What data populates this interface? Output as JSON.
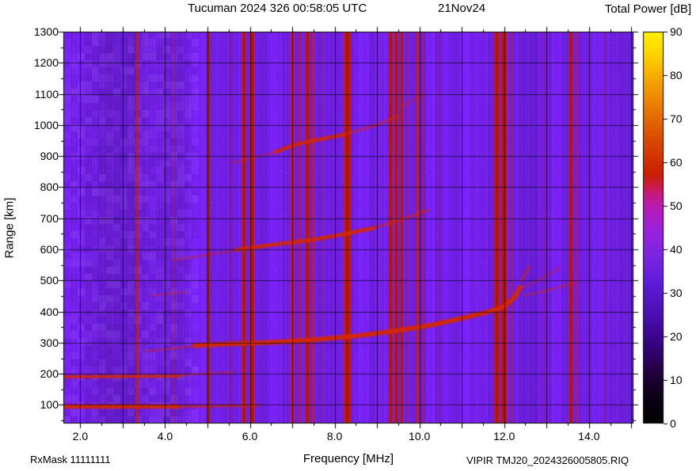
{
  "header": {
    "title": "Tucuman 2024 326 00:58:05 UTC",
    "date": "21Nov24"
  },
  "footer": {
    "rxmask": "RxMask 11111111",
    "file": "VIPIR TMJ20_2024326005805.RIQ"
  },
  "chart_data": {
    "type": "heatmap",
    "title": "Tucuman 2024 326 00:58:05 UTC 21Nov24",
    "xlabel": "Frequency [MHz]",
    "ylabel": "Range [km]",
    "xlim": [
      1.6,
      15.05
    ],
    "ylim": [
      40,
      1300
    ],
    "grid": true,
    "xticks": {
      "values": [
        2,
        4,
        6,
        8,
        10,
        12,
        14
      ],
      "labels": [
        "2.0",
        "4.0",
        "6.0",
        "8.0",
        "10.0",
        "12.0",
        "14.0"
      ]
    },
    "yticks": {
      "values": [
        100,
        200,
        300,
        400,
        500,
        600,
        700,
        800,
        900,
        1000,
        1100,
        1200,
        1300
      ],
      "labels": [
        "100",
        "200",
        "300",
        "400",
        "500",
        "600",
        "700",
        "800",
        "900",
        "1000",
        "1100",
        "1200",
        "1300"
      ]
    },
    "x_minor_step": 0.5,
    "y_minor_step": 50,
    "colorbar": {
      "title": "Total Power [dB]",
      "min": 0,
      "max": 90,
      "ticks": [
        0,
        10,
        20,
        30,
        40,
        50,
        60,
        70,
        80,
        90
      ],
      "stops": [
        {
          "pos": 0.0,
          "color": "#000000"
        },
        {
          "pos": 0.06,
          "color": "#0a0012"
        },
        {
          "pos": 0.13,
          "color": "#22003e"
        },
        {
          "pos": 0.2,
          "color": "#37027f"
        },
        {
          "pos": 0.28,
          "color": "#4a10b4"
        },
        {
          "pos": 0.36,
          "color": "#5f1cd8"
        },
        {
          "pos": 0.43,
          "color": "#7c26e2"
        },
        {
          "pos": 0.49,
          "color": "#9822dd"
        },
        {
          "pos": 0.54,
          "color": "#b31cc0"
        },
        {
          "pos": 0.58,
          "color": "#c41a8a"
        },
        {
          "pos": 0.61,
          "color": "#cb1c3a"
        },
        {
          "pos": 0.64,
          "color": "#cc2000"
        },
        {
          "pos": 0.72,
          "color": "#d94800"
        },
        {
          "pos": 0.8,
          "color": "#e87600"
        },
        {
          "pos": 0.88,
          "color": "#f5a800"
        },
        {
          "pos": 0.94,
          "color": "#fdd200"
        },
        {
          "pos": 1.0,
          "color": "#fff200"
        }
      ]
    },
    "colors": {
      "base": "#7020e2",
      "stripe": "#cc2000",
      "stripe_core": "#8c1000",
      "trace": "#d42800",
      "grid": "rgba(0,0,0,0.6)"
    },
    "rfi_stripes": [
      {
        "f": 3.35,
        "w": 0.05,
        "a": 0.8
      },
      {
        "f": 4.22,
        "w": 0.04,
        "a": 0.3
      },
      {
        "f": 5.03,
        "w": 0.06,
        "a": 0.9
      },
      {
        "f": 5.55,
        "w": 0.03,
        "a": 0.35
      },
      {
        "f": 5.86,
        "w": 0.09,
        "a": 0.95
      },
      {
        "f": 6.05,
        "w": 0.11,
        "a": 0.95
      },
      {
        "f": 7.0,
        "w": 0.07,
        "a": 0.85
      },
      {
        "f": 7.17,
        "w": 0.05,
        "a": 0.7
      },
      {
        "f": 7.36,
        "w": 0.09,
        "a": 0.95
      },
      {
        "f": 7.5,
        "w": 0.05,
        "a": 0.8
      },
      {
        "f": 7.72,
        "w": 0.03,
        "a": 0.45
      },
      {
        "f": 8.3,
        "w": 0.16,
        "a": 0.95
      },
      {
        "f": 9.32,
        "w": 0.08,
        "a": 0.95
      },
      {
        "f": 9.45,
        "w": 0.08,
        "a": 0.95
      },
      {
        "f": 9.58,
        "w": 0.07,
        "a": 0.9
      },
      {
        "f": 9.72,
        "w": 0.04,
        "a": 0.5
      },
      {
        "f": 9.95,
        "w": 0.06,
        "a": 0.85
      },
      {
        "f": 10.08,
        "w": 0.04,
        "a": 0.6
      },
      {
        "f": 10.45,
        "w": 0.03,
        "a": 0.3
      },
      {
        "f": 11.83,
        "w": 0.12,
        "a": 0.95
      },
      {
        "f": 12.0,
        "w": 0.14,
        "a": 0.95
      },
      {
        "f": 12.17,
        "w": 0.04,
        "a": 0.5
      },
      {
        "f": 12.95,
        "w": 0.03,
        "a": 0.35
      },
      {
        "f": 13.58,
        "w": 0.09,
        "a": 0.9
      },
      {
        "f": 13.72,
        "w": 0.05,
        "a": 0.55
      },
      {
        "f": 14.38,
        "w": 0.03,
        "a": 0.3
      }
    ],
    "shade_bands": [
      {
        "f1": 1.6,
        "f2": 2.1,
        "k": 1.06
      },
      {
        "f1": 2.4,
        "f2": 3.35,
        "k": 0.93
      },
      {
        "f1": 4.55,
        "f2": 4.95,
        "k": 1.1
      },
      {
        "f1": 6.45,
        "f2": 6.75,
        "k": 1.1
      },
      {
        "f1": 8.55,
        "f2": 8.8,
        "k": 1.08
      },
      {
        "f1": 9.0,
        "f2": 9.25,
        "k": 1.05
      },
      {
        "f1": 10.15,
        "f2": 10.35,
        "k": 1.12
      },
      {
        "f1": 10.55,
        "f2": 10.75,
        "k": 1.06
      },
      {
        "f1": 10.95,
        "f2": 11.2,
        "k": 1.1
      },
      {
        "f1": 11.3,
        "f2": 11.6,
        "k": 1.05
      },
      {
        "f1": 12.35,
        "f2": 12.8,
        "k": 0.95
      },
      {
        "f1": 13.1,
        "f2": 13.35,
        "k": 1.08
      },
      {
        "f1": 14.05,
        "f2": 14.3,
        "k": 1.06
      },
      {
        "f1": 14.55,
        "f2": 15.05,
        "k": 0.96
      }
    ],
    "traces": [
      {
        "name": "E-layer first hop",
        "w": 4,
        "a": 0.95,
        "points": [
          [
            1.62,
            95
          ],
          [
            4.3,
            95
          ]
        ]
      },
      {
        "name": "E-layer first hop fade",
        "w": 3,
        "a": 0.5,
        "points": [
          [
            4.3,
            95
          ],
          [
            6.2,
            98
          ]
        ]
      },
      {
        "name": "E-layer second hop",
        "w": 3,
        "a": 0.8,
        "points": [
          [
            1.62,
            190
          ],
          [
            4.35,
            193
          ]
        ]
      },
      {
        "name": "E-layer second hop fade",
        "w": 2,
        "a": 0.35,
        "points": [
          [
            4.35,
            195
          ],
          [
            5.6,
            205
          ]
        ]
      },
      {
        "name": "F-layer lead-in",
        "w": 2,
        "a": 0.35,
        "points": [
          [
            3.55,
            272
          ],
          [
            4.7,
            289
          ]
        ]
      },
      {
        "name": "F-layer first hop",
        "w": 5,
        "a": 0.92,
        "points": [
          [
            4.7,
            291
          ],
          [
            5.5,
            296
          ],
          [
            6.5,
            301
          ],
          [
            7.5,
            309
          ],
          [
            8.5,
            321
          ],
          [
            9.5,
            339
          ],
          [
            10.3,
            357
          ],
          [
            11.0,
            378
          ],
          [
            11.6,
            398
          ],
          [
            12.0,
            416
          ],
          [
            12.25,
            446
          ],
          [
            12.38,
            478
          ]
        ]
      },
      {
        "name": "F-layer cusp tail",
        "w": 3,
        "a": 0.4,
        "points": [
          [
            12.42,
            500
          ],
          [
            12.6,
            545
          ]
        ]
      },
      {
        "name": "F-layer second hop lead",
        "w": 2,
        "a": 0.3,
        "points": [
          [
            4.2,
            565
          ],
          [
            5.7,
            597
          ]
        ]
      },
      {
        "name": "F-layer second hop",
        "w": 4,
        "a": 0.85,
        "points": [
          [
            5.7,
            599
          ],
          [
            6.5,
            614
          ],
          [
            7.5,
            631
          ],
          [
            8.3,
            651
          ],
          [
            8.9,
            668
          ]
        ]
      },
      {
        "name": "F-layer second hop fade",
        "w": 3,
        "a": 0.4,
        "points": [
          [
            8.9,
            668
          ],
          [
            9.7,
            701
          ],
          [
            10.2,
            726
          ]
        ]
      },
      {
        "name": "F-layer third hop lead",
        "w": 2,
        "a": 0.3,
        "points": [
          [
            5.6,
            878
          ],
          [
            6.6,
            912
          ]
        ]
      },
      {
        "name": "F-layer third hop",
        "w": 4,
        "a": 0.8,
        "points": [
          [
            6.6,
            913
          ],
          [
            7.1,
            938
          ],
          [
            7.7,
            955
          ],
          [
            8.2,
            968
          ]
        ]
      },
      {
        "name": "F-layer third hop fade",
        "w": 3,
        "a": 0.4,
        "points": [
          [
            8.2,
            968
          ],
          [
            9.0,
            1000
          ],
          [
            9.5,
            1028
          ]
        ]
      },
      {
        "name": "high-order faint echo",
        "w": 2,
        "a": 0.3,
        "points": [
          [
            9.6,
            1060
          ],
          [
            10.1,
            1100
          ]
        ]
      },
      {
        "name": "oblique echo upper",
        "w": 2,
        "a": 0.35,
        "points": [
          [
            12.5,
            452
          ],
          [
            13.1,
            470
          ],
          [
            13.7,
            494
          ]
        ]
      },
      {
        "name": "oblique echo lower",
        "w": 2,
        "a": 0.3,
        "points": [
          [
            12.45,
            478
          ],
          [
            12.9,
            506
          ],
          [
            13.3,
            540
          ]
        ]
      },
      {
        "name": "faint mid echo",
        "w": 2,
        "a": 0.28,
        "points": [
          [
            3.7,
            452
          ],
          [
            4.5,
            463
          ]
        ]
      }
    ]
  }
}
